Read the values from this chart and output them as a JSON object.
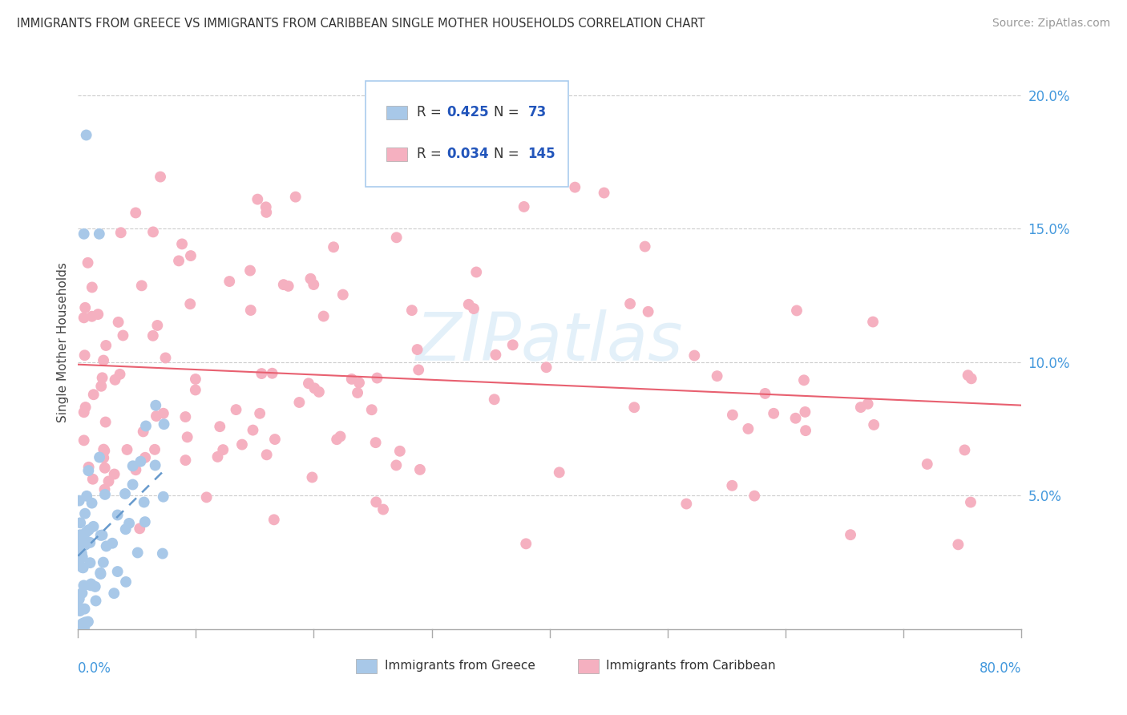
{
  "title": "IMMIGRANTS FROM GREECE VS IMMIGRANTS FROM CARIBBEAN SINGLE MOTHER HOUSEHOLDS CORRELATION CHART",
  "source": "Source: ZipAtlas.com",
  "ylabel": "Single Mother Households",
  "xlim": [
    0.0,
    0.8
  ],
  "ylim": [
    0.0,
    0.215
  ],
  "blue_R": 0.425,
  "blue_N": 73,
  "pink_R": 0.034,
  "pink_N": 145,
  "blue_color": "#a8c8e8",
  "pink_color": "#f5b0c0",
  "blue_line_color": "#6699cc",
  "pink_line_color": "#e86070",
  "watermark": "ZIPatlas",
  "legend_R_color": "#2255bb",
  "legend_N_color": "#2255bb",
  "background_color": "#ffffff",
  "grid_color": "#cccccc",
  "tick_color": "#4499dd",
  "ytick_vals": [
    0.05,
    0.1,
    0.15,
    0.2
  ],
  "ytick_labels": [
    "5.0%",
    "10.0%",
    "15.0%",
    "20.0%"
  ]
}
